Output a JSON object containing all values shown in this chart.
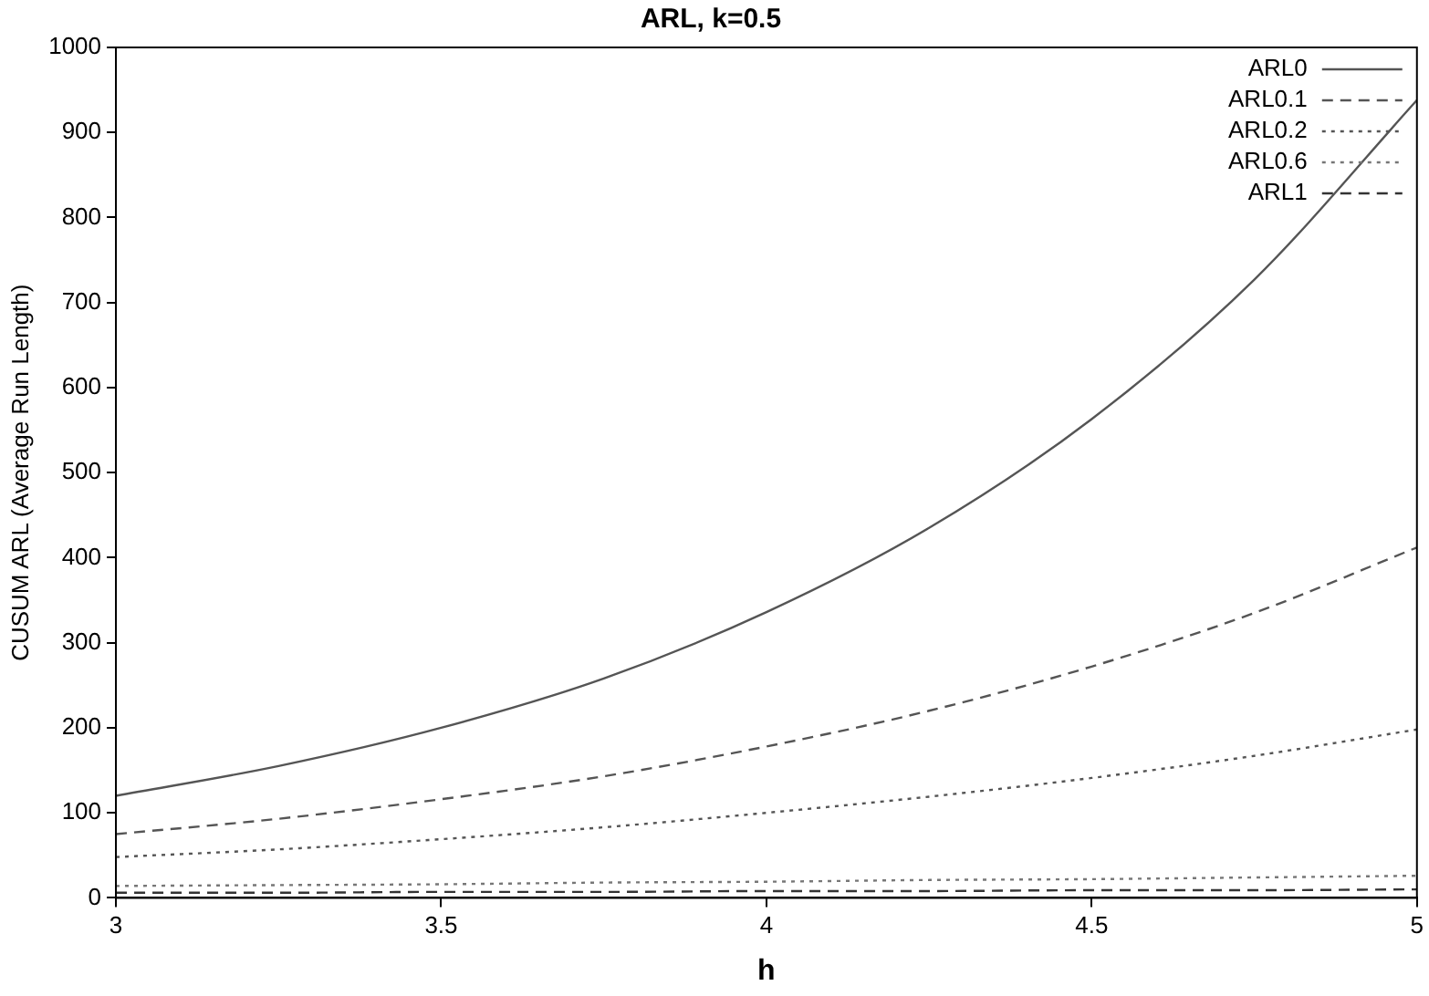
{
  "chart_data": {
    "type": "line",
    "title": "ARL, k=0.5",
    "xlabel": "h",
    "ylabel": "CUSUM ARL (Average Run Length)",
    "x": [
      3,
      3.25,
      3.5,
      3.75,
      4,
      4.25,
      4.5,
      4.75,
      5
    ],
    "series": [
      {
        "name": "ARL0",
        "color": "#555555",
        "line_style": "solid",
        "values": [
          120,
          155,
          200,
          258,
          336,
          435,
          563,
          727,
          938
        ]
      },
      {
        "name": "ARL0.1",
        "color": "#555555",
        "line_style": "dashed",
        "values": [
          75,
          93,
          116,
          143,
          178,
          220,
          272,
          335,
          412
        ]
      },
      {
        "name": "ARL0.2",
        "color": "#555555",
        "line_style": "dotted",
        "values": [
          48,
          57,
          69,
          83,
          100,
          119,
          141,
          167,
          198
        ]
      },
      {
        "name": "ARL0.6",
        "color": "#777777",
        "line_style": "dotted",
        "values": [
          14,
          15,
          16,
          18,
          19,
          21,
          22,
          24,
          26
        ]
      },
      {
        "name": "ARL1",
        "color": "#333333",
        "line_style": "dashed",
        "values": [
          6,
          6,
          7,
          7,
          8,
          8,
          9,
          9,
          10
        ]
      }
    ],
    "xlim": [
      3,
      5
    ],
    "xticks": [
      3,
      3.5,
      4,
      4.5,
      5
    ],
    "ylim": [
      0,
      1000
    ],
    "yticks": [
      0,
      100,
      200,
      300,
      400,
      500,
      600,
      700,
      800,
      900,
      1000
    ],
    "grid": false,
    "legend": "top right",
    "marker": "none"
  }
}
